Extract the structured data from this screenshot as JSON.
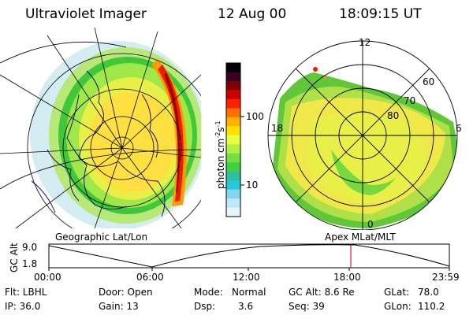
{
  "header": {
    "instrument": "Ultraviolet Imager",
    "date": "12 Aug 00",
    "time": "18:09:15 UT"
  },
  "left_map": {
    "label": "Geographic Lat/Lon"
  },
  "right_map": {
    "label": "Apex MLat/MLT",
    "mlt_labels": [
      "12",
      "18",
      "6",
      "0"
    ],
    "lat_labels": [
      "60",
      "70",
      "80"
    ]
  },
  "colorbar": {
    "unit_text": "photon cm",
    "unit_sup1": "-2",
    "unit_mid": "s",
    "unit_sup2": "-1",
    "tick_labels": [
      "100",
      "10"
    ],
    "colors": [
      "#000000",
      "#3a0020",
      "#800000",
      "#cc0000",
      "#ff2000",
      "#ff7000",
      "#ffb000",
      "#ffe000",
      "#e8ff40",
      "#b0f040",
      "#70e040",
      "#40d040",
      "#30c0a0",
      "#20c8e0",
      "#80d8f0",
      "#c0e8f8",
      "#e8f4fc"
    ]
  },
  "altitude_plot": {
    "ylabel": "GC Alt",
    "yticks": [
      "9.0",
      "1.8"
    ],
    "xticks": [
      "00:00",
      "06:00",
      "12:00",
      "18:00",
      "23:59"
    ],
    "current_marker": "18:09",
    "marker_color": "#cc0000"
  },
  "info": {
    "row1": {
      "flt": "Flt: LBHL",
      "door": "Door: Open",
      "mode_label": "Mode:",
      "mode_value": "Normal",
      "gc_alt": "GC Alt: 8.6 Re",
      "glat_label": "GLat:",
      "glat_value": "78.0"
    },
    "row2": {
      "ip": "IP: 36.0",
      "gain": "Gain: 13",
      "dsp_label": "Dsp:",
      "dsp_value": "3.6",
      "seq": "Seq: 39",
      "glon_label": "GLon:",
      "glon_value": "110.2"
    }
  }
}
